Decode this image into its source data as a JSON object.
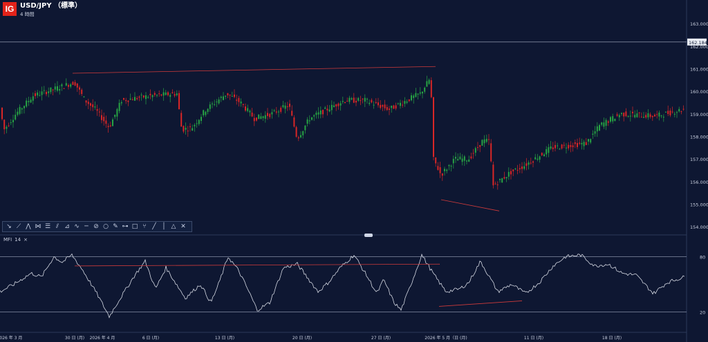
{
  "header": {
    "logo_text": "IG",
    "symbol": "USD/JPY （標準）",
    "timeframe": "4 時間"
  },
  "indicator": {
    "label": "MFI",
    "period": "14",
    "close": "×"
  },
  "toolbar": {
    "tools": [
      "arrow-icon",
      "trend-line-icon",
      "polyline-icon",
      "zigzag-icon",
      "channel-icon",
      "fibonacci-icon",
      "gann-icon",
      "elliott-icon",
      "horizontal-line-icon",
      "ruler-icon",
      "circle-icon",
      "brush-icon",
      "connector-icon",
      "rectangle-icon",
      "pitchfork-icon",
      "line-icon",
      "vertical-line-icon",
      "triangle-icon",
      "close-icon"
    ],
    "glyphs": [
      "↘",
      "⟋",
      "⋀",
      "⋈",
      "☰",
      "⫽",
      "⊿",
      "∿",
      "─",
      "⊘",
      "○",
      "✎",
      "⊶",
      "□",
      "⑂",
      "╱",
      "│",
      "△",
      "✕"
    ]
  },
  "colors": {
    "bg": "#0e1732",
    "up": "#27a444",
    "down": "#d92626",
    "line": "#d5d9e3",
    "trend": "#d13b3b",
    "grid": "#9ba5bd",
    "price_tag_bg": "#e8ecf4"
  },
  "chart_data": {
    "type": "candlestick",
    "symbol": "USD/JPY",
    "timeframe": "4 時間",
    "y_axis": {
      "ticks": [
        "163.000",
        "162.000",
        "161.000",
        "160.000",
        "159.000",
        "158.000",
        "157.000",
        "156.000",
        "155.000",
        "154.000"
      ],
      "ylim": [
        153.7,
        163.8
      ]
    },
    "current_price_label": "162.184",
    "x_axis_labels": [
      "2026 年 3 月",
      "30 日 (月)",
      "2026 年 4 月",
      "6 日 (月)",
      "13 日 (月)",
      "20 日 (月)",
      "27 日 (月)",
      "2026 年 5 月（日 (月)",
      "11 日 (月)",
      "18 日 (月)"
    ],
    "price_waypoints": [
      [
        0,
        159.6
      ],
      [
        8,
        158.3
      ],
      [
        25,
        159.0
      ],
      [
        50,
        159.8
      ],
      [
        100,
        160.3
      ],
      [
        110,
        160.4
      ],
      [
        125,
        159.6
      ],
      [
        140,
        159.2
      ],
      [
        160,
        158.4
      ],
      [
        178,
        159.6
      ],
      [
        220,
        159.8
      ],
      [
        258,
        159.9
      ],
      [
        265,
        158.3
      ],
      [
        280,
        158.4
      ],
      [
        300,
        159.2
      ],
      [
        330,
        159.9
      ],
      [
        350,
        159.5
      ],
      [
        370,
        158.8
      ],
      [
        395,
        159.0
      ],
      [
        420,
        159.4
      ],
      [
        432,
        157.9
      ],
      [
        450,
        158.8
      ],
      [
        475,
        159.2
      ],
      [
        500,
        159.6
      ],
      [
        530,
        159.6
      ],
      [
        565,
        159.2
      ],
      [
        590,
        159.6
      ],
      [
        610,
        159.9
      ],
      [
        625,
        160.6
      ],
      [
        629,
        157.0
      ],
      [
        640,
        156.3
      ],
      [
        660,
        157.0
      ],
      [
        680,
        157.0
      ],
      [
        700,
        157.8
      ],
      [
        710,
        157.8
      ],
      [
        715,
        155.8
      ],
      [
        740,
        156.4
      ],
      [
        760,
        156.7
      ],
      [
        775,
        157.0
      ],
      [
        800,
        157.5
      ],
      [
        850,
        157.7
      ],
      [
        870,
        158.5
      ],
      [
        900,
        159.0
      ],
      [
        950,
        158.9
      ],
      [
        990,
        159.2
      ]
    ],
    "price_trendlines": [
      [
        [
          105,
          160.8
        ],
        [
          630,
          161.1
        ]
      ],
      [
        [
          638,
          155.2
        ],
        [
          722,
          154.7
        ]
      ]
    ],
    "mfi": {
      "name": "MFI",
      "period": 14,
      "levels": [
        80,
        20
      ],
      "level_labels": [
        "80",
        "20"
      ],
      "ylim": [
        0,
        100
      ],
      "waypoints": [
        [
          0,
          42
        ],
        [
          20,
          50
        ],
        [
          45,
          62
        ],
        [
          60,
          58
        ],
        [
          78,
          80
        ],
        [
          90,
          74
        ],
        [
          104,
          82
        ],
        [
          120,
          65
        ],
        [
          140,
          40
        ],
        [
          158,
          15
        ],
        [
          170,
          30
        ],
        [
          195,
          60
        ],
        [
          210,
          75
        ],
        [
          225,
          45
        ],
        [
          240,
          68
        ],
        [
          268,
          35
        ],
        [
          290,
          50
        ],
        [
          305,
          30
        ],
        [
          315,
          48
        ],
        [
          330,
          80
        ],
        [
          345,
          65
        ],
        [
          360,
          42
        ],
        [
          372,
          22
        ],
        [
          390,
          30
        ],
        [
          410,
          68
        ],
        [
          430,
          72
        ],
        [
          460,
          42
        ],
        [
          475,
          52
        ],
        [
          492,
          68
        ],
        [
          512,
          82
        ],
        [
          530,
          60
        ],
        [
          545,
          40
        ],
        [
          555,
          55
        ],
        [
          570,
          30
        ],
        [
          580,
          22
        ],
        [
          592,
          45
        ],
        [
          610,
          82
        ],
        [
          628,
          60
        ],
        [
          645,
          42
        ],
        [
          665,
          45
        ],
        [
          678,
          52
        ],
        [
          695,
          75
        ],
        [
          720,
          42
        ],
        [
          740,
          50
        ],
        [
          760,
          40
        ],
        [
          780,
          52
        ],
        [
          800,
          70
        ],
        [
          818,
          80
        ],
        [
          840,
          82
        ],
        [
          860,
          70
        ],
        [
          880,
          72
        ],
        [
          900,
          62
        ],
        [
          920,
          60
        ],
        [
          945,
          40
        ],
        [
          965,
          52
        ],
        [
          990,
          58
        ]
      ],
      "trendlines": [
        [
          [
            108,
            70
          ],
          [
            636,
            72
          ]
        ],
        [
          [
            635,
            26
          ],
          [
            755,
            32
          ]
        ]
      ]
    }
  }
}
